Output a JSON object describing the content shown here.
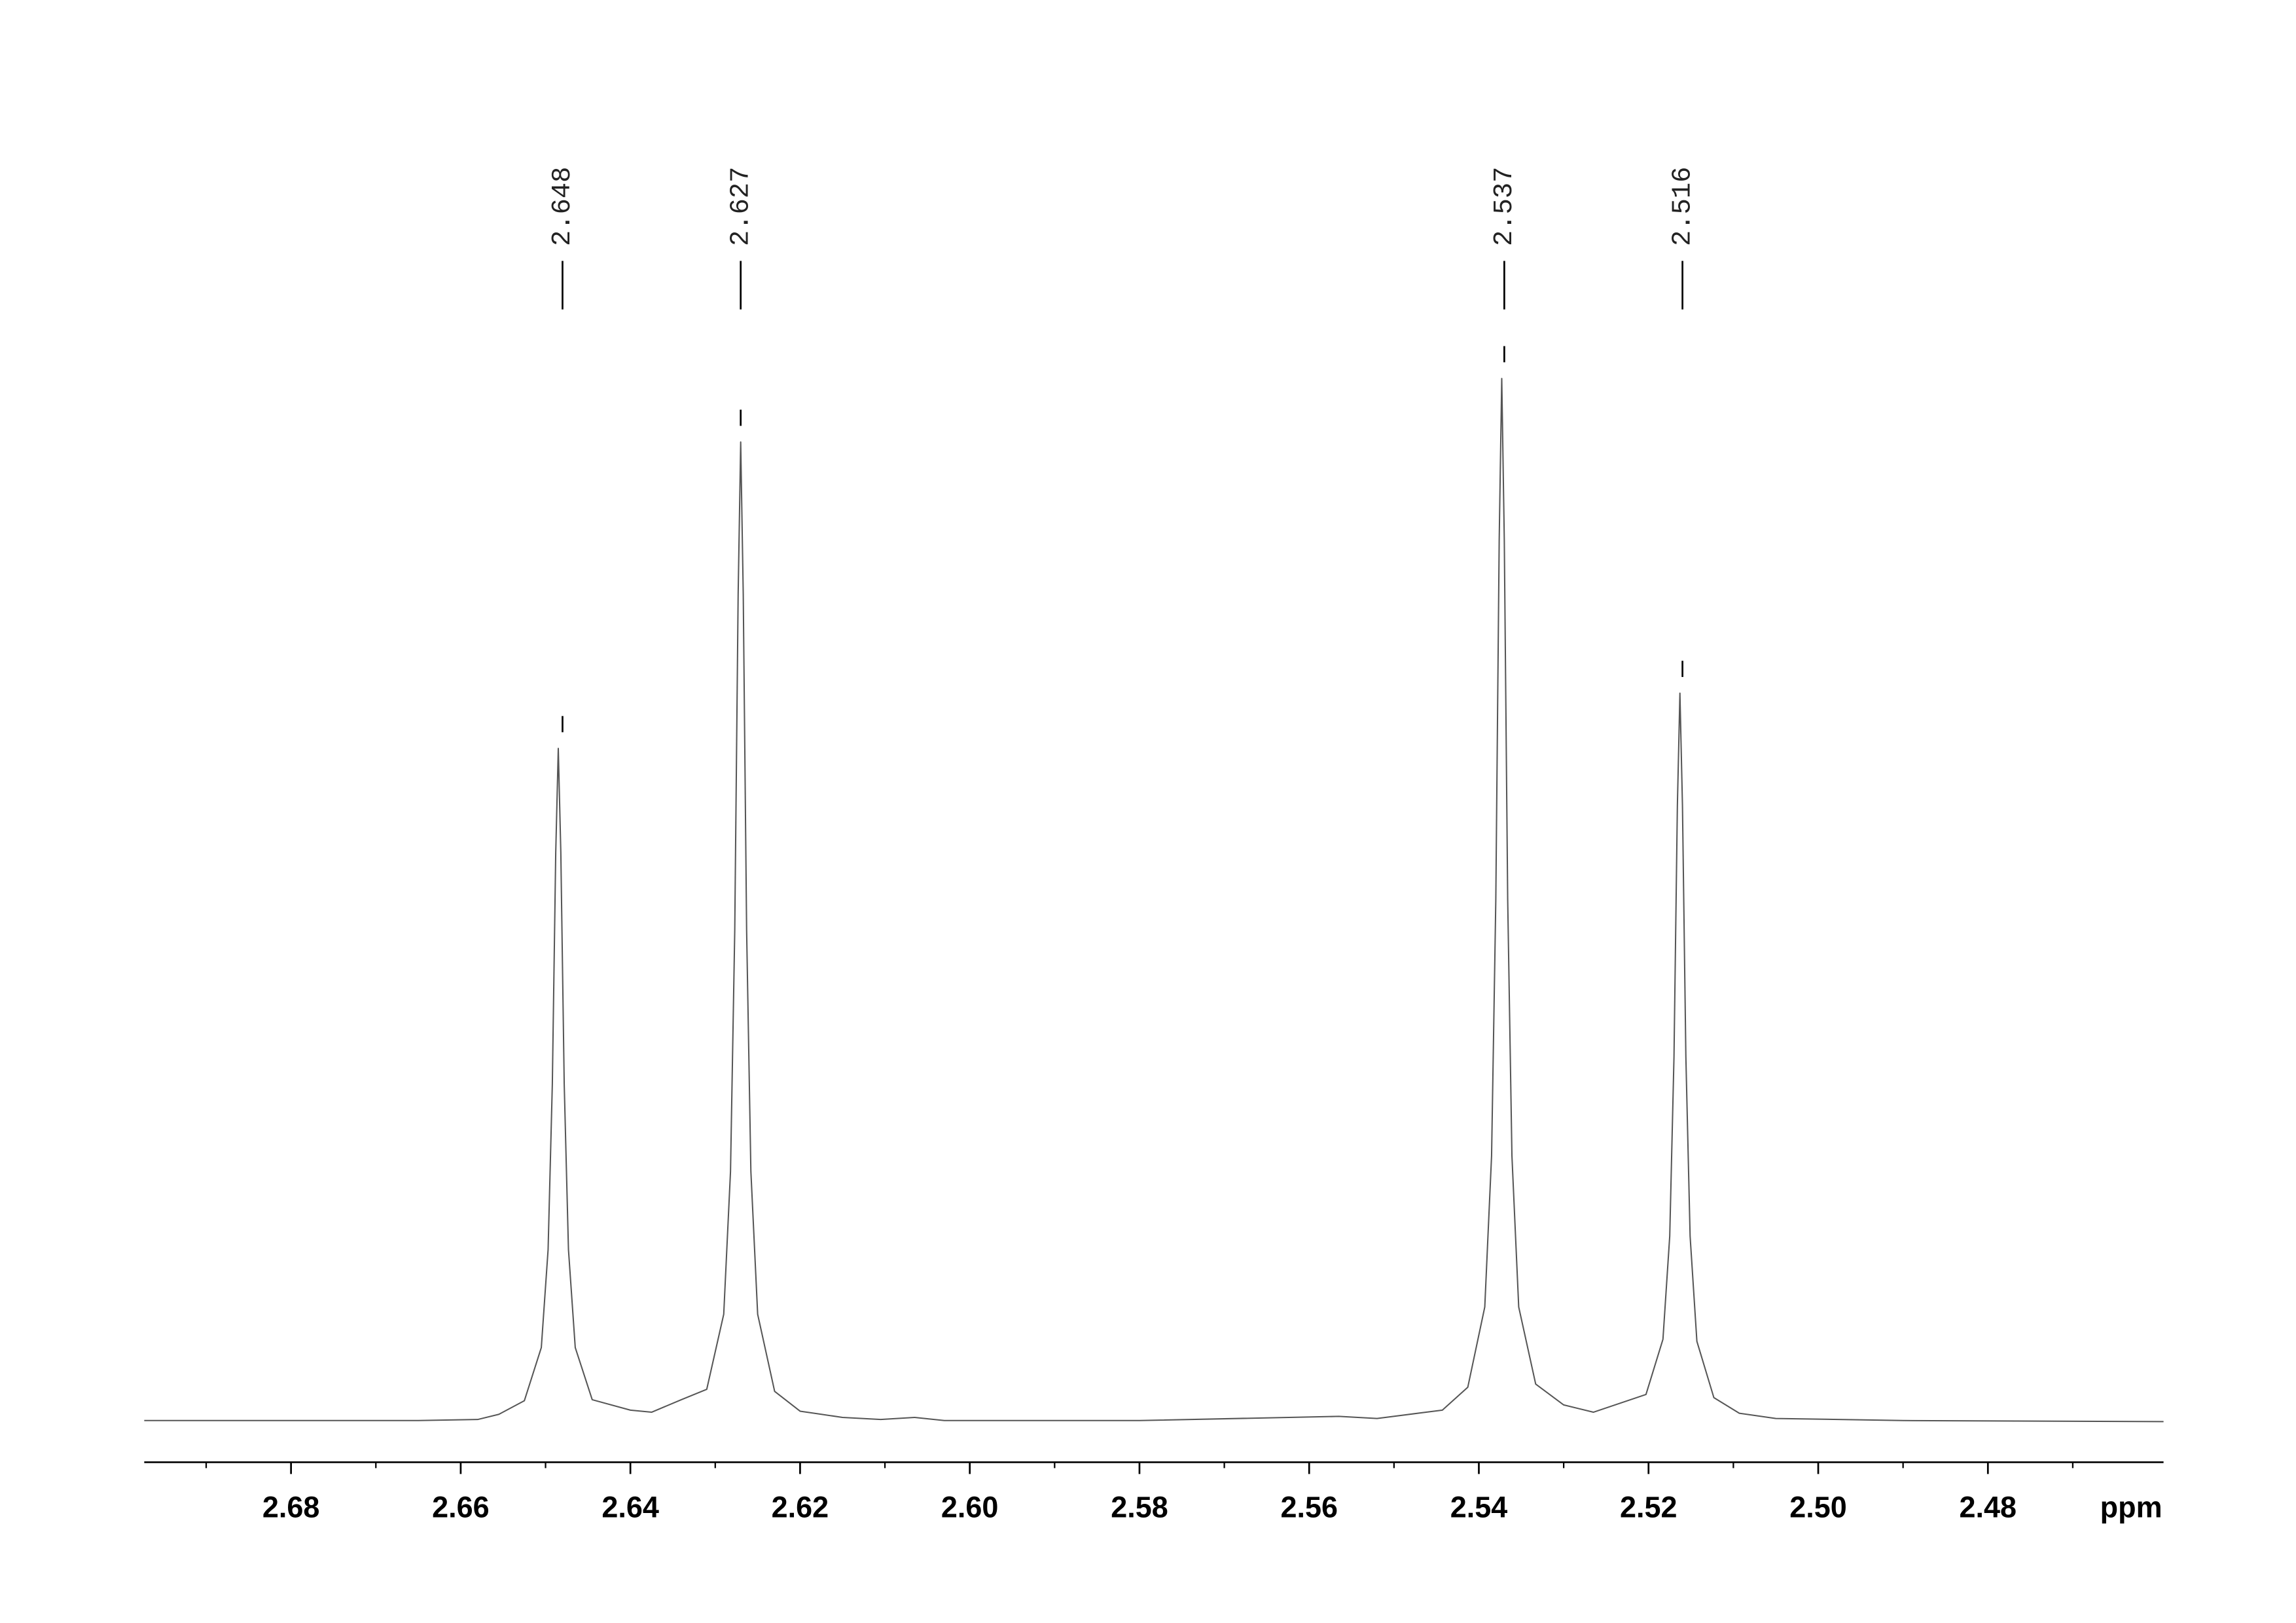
{
  "chart_data": {
    "type": "line",
    "x_label": "ppm",
    "xlim": [
      2.6973,
      2.4593
    ],
    "ylim": [
      -4,
      124
    ],
    "xticks": [
      2.68,
      2.66,
      2.64,
      2.62,
      {
        "value": 2.6,
        "label": "2.60"
      },
      2.58,
      2.56,
      2.54,
      2.52,
      {
        "value": 2.5,
        "label": "2.50"
      },
      2.48
    ],
    "minor_xticks": [
      2.69,
      2.67,
      2.65,
      2.63,
      2.61,
      2.59,
      2.57,
      2.55,
      2.53,
      2.51,
      2.49,
      2.47
    ],
    "peaks": [
      2.648,
      2.627,
      2.537,
      2.516
    ],
    "peak_heights": [
      64.5,
      93.9,
      100,
      69.8
    ],
    "color": "#555555",
    "x": [
      2.6973,
      2.68,
      2.665,
      2.658,
      2.6555,
      2.6525,
      2.6505,
      2.6497,
      2.6492,
      2.6488,
      2.6485,
      2.6482,
      2.6478,
      2.6473,
      2.6465,
      2.6445,
      2.64,
      2.6375,
      2.634,
      2.631,
      2.629,
      2.6282,
      2.6277,
      2.6273,
      2.627,
      2.6267,
      2.6263,
      2.6258,
      2.625,
      2.623,
      2.62,
      2.615,
      2.6105,
      2.6065,
      2.603,
      2.58,
      2.5565,
      2.552,
      2.5443,
      2.5413,
      2.5393,
      2.5385,
      2.538,
      2.5376,
      2.5373,
      2.537,
      2.5366,
      2.5361,
      2.5353,
      2.5333,
      2.53,
      2.5265,
      2.5203,
      2.5183,
      2.5175,
      2.517,
      2.5166,
      2.5163,
      2.516,
      2.5156,
      2.5151,
      2.5143,
      2.5123,
      2.5093,
      2.505,
      2.49,
      2.4593
    ],
    "values": [
      0,
      0,
      0,
      0.1,
      0.6,
      1.9,
      7.0,
      16.4,
      32.3,
      54.5,
      64.5,
      54.5,
      32.3,
      16.4,
      7.0,
      2.0,
      1.0,
      0.8,
      2.0,
      3.0,
      10.2,
      23.9,
      47.0,
      79.3,
      93.9,
      79.3,
      47.0,
      23.9,
      10.2,
      2.8,
      0.9,
      0.3,
      0.1,
      0.3,
      0,
      0,
      0.4,
      0.2,
      1.0,
      3.2,
      10.9,
      25.4,
      50,
      84.5,
      100,
      84.5,
      50,
      25.4,
      10.9,
      3.5,
      1.5,
      0.8,
      2.5,
      7.8,
      17.7,
      34.9,
      59.0,
      69.8,
      59.0,
      34.9,
      17.7,
      7.6,
      2.2,
      0.7,
      0.2,
      0,
      -0.1
    ]
  }
}
